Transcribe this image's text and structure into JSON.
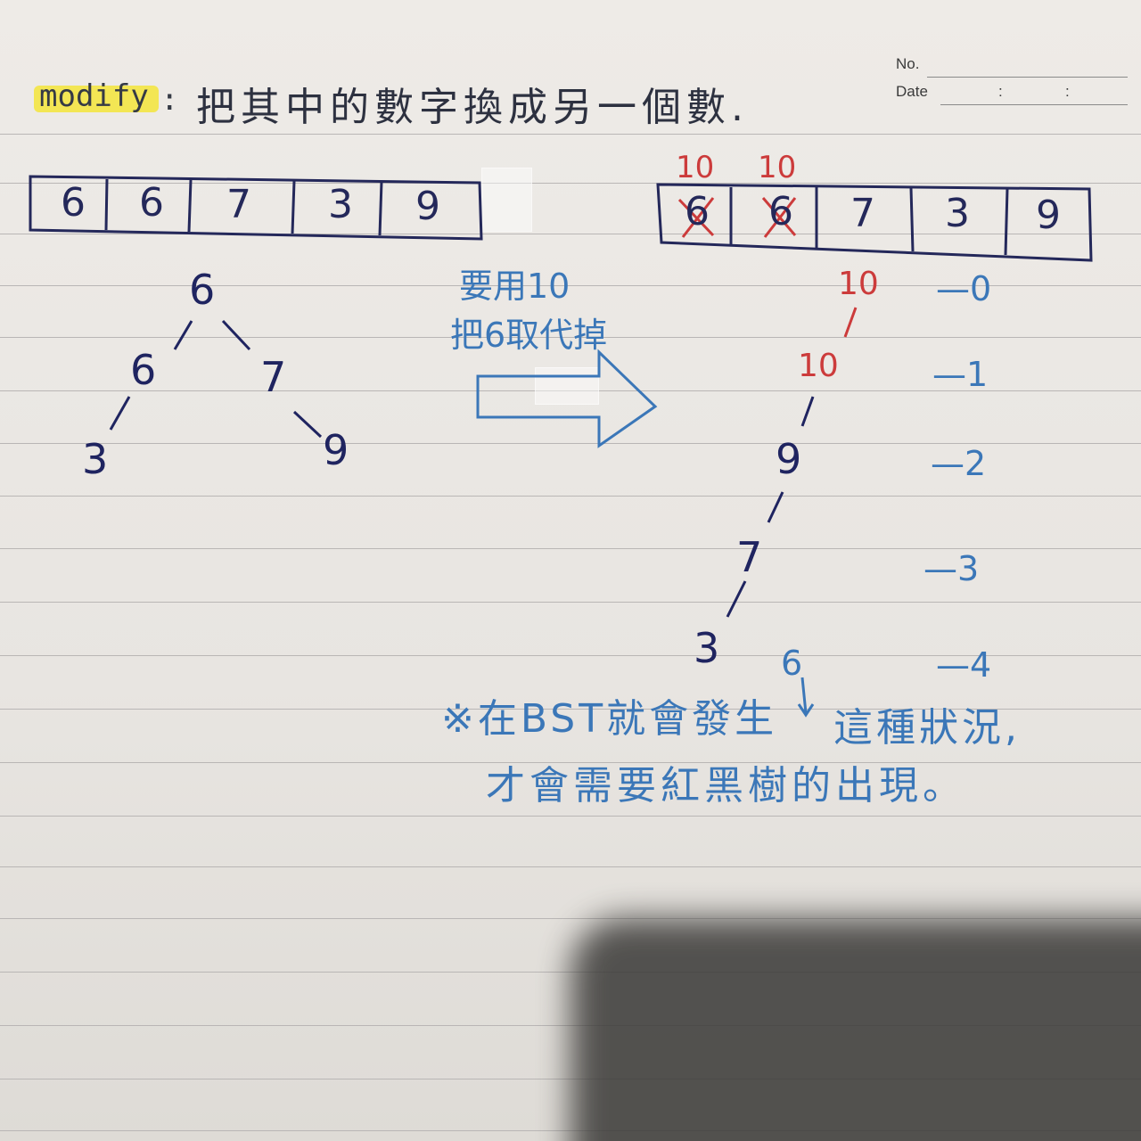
{
  "header": {
    "no_label": "No.",
    "date_label": "Date",
    "date_sep1": ":",
    "date_sep2": ":"
  },
  "title": {
    "keyword": "modify",
    "colon": ":",
    "text": "把其中的數字換成另一個數.",
    "highlight_color": "#f3e53a"
  },
  "array_before": {
    "cells": [
      "6",
      "6",
      "7",
      "3",
      "9"
    ]
  },
  "array_after": {
    "cells": [
      "6",
      "6",
      "7",
      "3",
      "9"
    ],
    "replacements": [
      "10",
      "10"
    ]
  },
  "tree_before": {
    "root": "6",
    "left": "6",
    "right": "7",
    "left_left": "3",
    "right_right": "9"
  },
  "arrow_note": {
    "line1": "要用10",
    "line2": "把6取代掉"
  },
  "chain_after": {
    "nodes": [
      "10",
      "10",
      "9",
      "7",
      "3"
    ],
    "levels": [
      "—0",
      "—1",
      "—2",
      "—3",
      "—4"
    ],
    "extra": "6"
  },
  "note": {
    "line1": "※在BST就會發生",
    "line2": "這種狀況,",
    "line3": "才會需要紅黑樹的出現。"
  },
  "colors": {
    "pencil": "#2f3b55",
    "blue_pen": "#3b77b8",
    "red_pen": "#cc3b3b",
    "navy_pen": "#1f2460"
  }
}
